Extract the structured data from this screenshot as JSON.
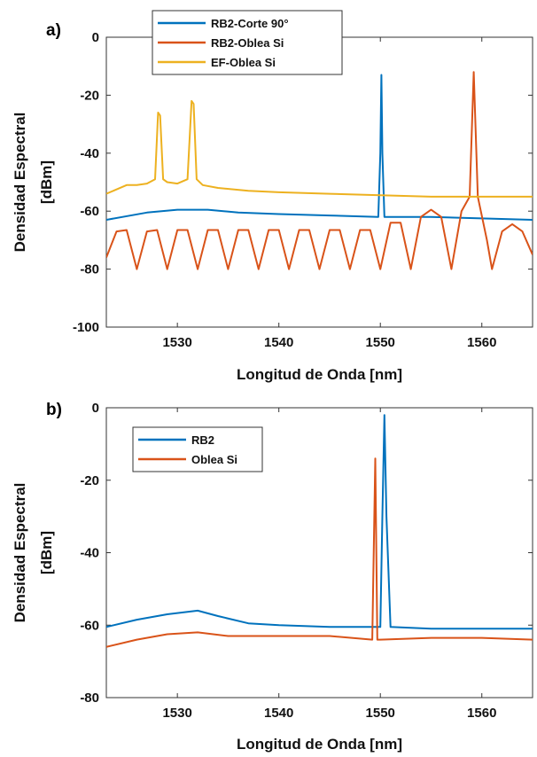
{
  "chart_data": [
    {
      "type": "line",
      "panel_label": "a)",
      "xlabel": "Longitud de Onda [nm]",
      "ylabel_lines": [
        "Densidad Espectral",
        "[dBm]"
      ],
      "xlim": [
        1523,
        1565
      ],
      "ylim": [
        -100,
        0
      ],
      "xticks": [
        1530,
        1540,
        1550,
        1560
      ],
      "yticks": [
        0,
        -20,
        -40,
        -60,
        -80,
        -100
      ],
      "grid": false,
      "legend_position": "top-left",
      "series": [
        {
          "name": "RB2-Corte 90°",
          "color": "#0072BD",
          "x": [
            1523,
            1527,
            1530,
            1533,
            1536,
            1540,
            1545,
            1549.8,
            1550.0,
            1550.1,
            1550.2,
            1550.4,
            1555,
            1560,
            1565
          ],
          "y": [
            -63,
            -60.5,
            -59.5,
            -59.5,
            -60.5,
            -61,
            -61.5,
            -62,
            -40,
            -13,
            -40,
            -62,
            -62,
            -62.5,
            -63
          ]
        },
        {
          "name": "RB2-Oblea Si",
          "color": "#D95319",
          "x": [
            1523,
            1524,
            1525,
            1526,
            1527,
            1528,
            1529,
            1530,
            1531,
            1532,
            1533,
            1534,
            1535,
            1536,
            1537,
            1538,
            1539,
            1540,
            1541,
            1542,
            1543,
            1544,
            1545,
            1546,
            1547,
            1548,
            1549,
            1550,
            1551,
            1552,
            1553,
            1554,
            1555,
            1556,
            1557,
            1558,
            1558.8,
            1559.2,
            1559.6,
            1560.5,
            1561,
            1562,
            1563,
            1564,
            1565
          ],
          "y": [
            -76,
            -67,
            -66.5,
            -80,
            -67,
            -66.5,
            -80,
            -66.5,
            -66.5,
            -80,
            -66.5,
            -66.5,
            -80,
            -66.5,
            -66.5,
            -80,
            -66.5,
            -66.5,
            -80,
            -66.5,
            -66.5,
            -80,
            -66.5,
            -66.5,
            -80,
            -66.5,
            -66.5,
            -80,
            -64,
            -64,
            -80,
            -62,
            -59.5,
            -62,
            -80,
            -60,
            -55,
            -12,
            -55,
            -70,
            -80,
            -67,
            -64.5,
            -67,
            -75
          ]
        },
        {
          "name": "EF-Oblea Si",
          "color": "#EDB120",
          "x": [
            1523,
            1524,
            1525,
            1526,
            1527,
            1527.8,
            1528.1,
            1528.3,
            1528.6,
            1529,
            1530,
            1531,
            1531.4,
            1531.6,
            1531.9,
            1532.5,
            1534,
            1537,
            1540,
            1545,
            1550,
            1555,
            1560,
            1565
          ],
          "y": [
            -54,
            -52.5,
            -51,
            -51,
            -50.5,
            -49,
            -26,
            -27,
            -49,
            -50,
            -50.5,
            -49,
            -22,
            -23,
            -49,
            -51,
            -52,
            -53,
            -53.5,
            -54,
            -54.5,
            -55,
            -55,
            -55
          ]
        }
      ]
    },
    {
      "type": "line",
      "panel_label": "b)",
      "xlabel": "Longitud de Onda [nm]",
      "ylabel_lines": [
        "Densidad Espectral",
        "[dBm]"
      ],
      "xlim": [
        1523,
        1565
      ],
      "ylim": [
        -80,
        0
      ],
      "xticks": [
        1530,
        1540,
        1550,
        1560
      ],
      "yticks": [
        0,
        -20,
        -40,
        -60,
        -80
      ],
      "grid": false,
      "legend_position": "top-left",
      "series": [
        {
          "name": "RB2",
          "color": "#0072BD",
          "x": [
            1523,
            1526,
            1529,
            1532,
            1534,
            1537,
            1540,
            1545,
            1550,
            1550.2,
            1550.4,
            1550.6,
            1551,
            1555,
            1560,
            1565
          ],
          "y": [
            -60.5,
            -58.5,
            -57,
            -56,
            -57.5,
            -59.5,
            -60,
            -60.5,
            -60.5,
            -30,
            -2,
            -30,
            -60.5,
            -61,
            -61,
            -61
          ]
        },
        {
          "name": "Oblea Si",
          "color": "#D95319",
          "x": [
            1523,
            1526,
            1529,
            1532,
            1535,
            1538,
            1540,
            1545,
            1549.2,
            1549.5,
            1549.7,
            1550,
            1555,
            1560,
            1565
          ],
          "y": [
            -66,
            -64,
            -62.5,
            -62,
            -63,
            -63,
            -63,
            -63,
            -64,
            -14,
            -64,
            -64,
            -63.5,
            -63.5,
            -64
          ]
        }
      ]
    }
  ]
}
